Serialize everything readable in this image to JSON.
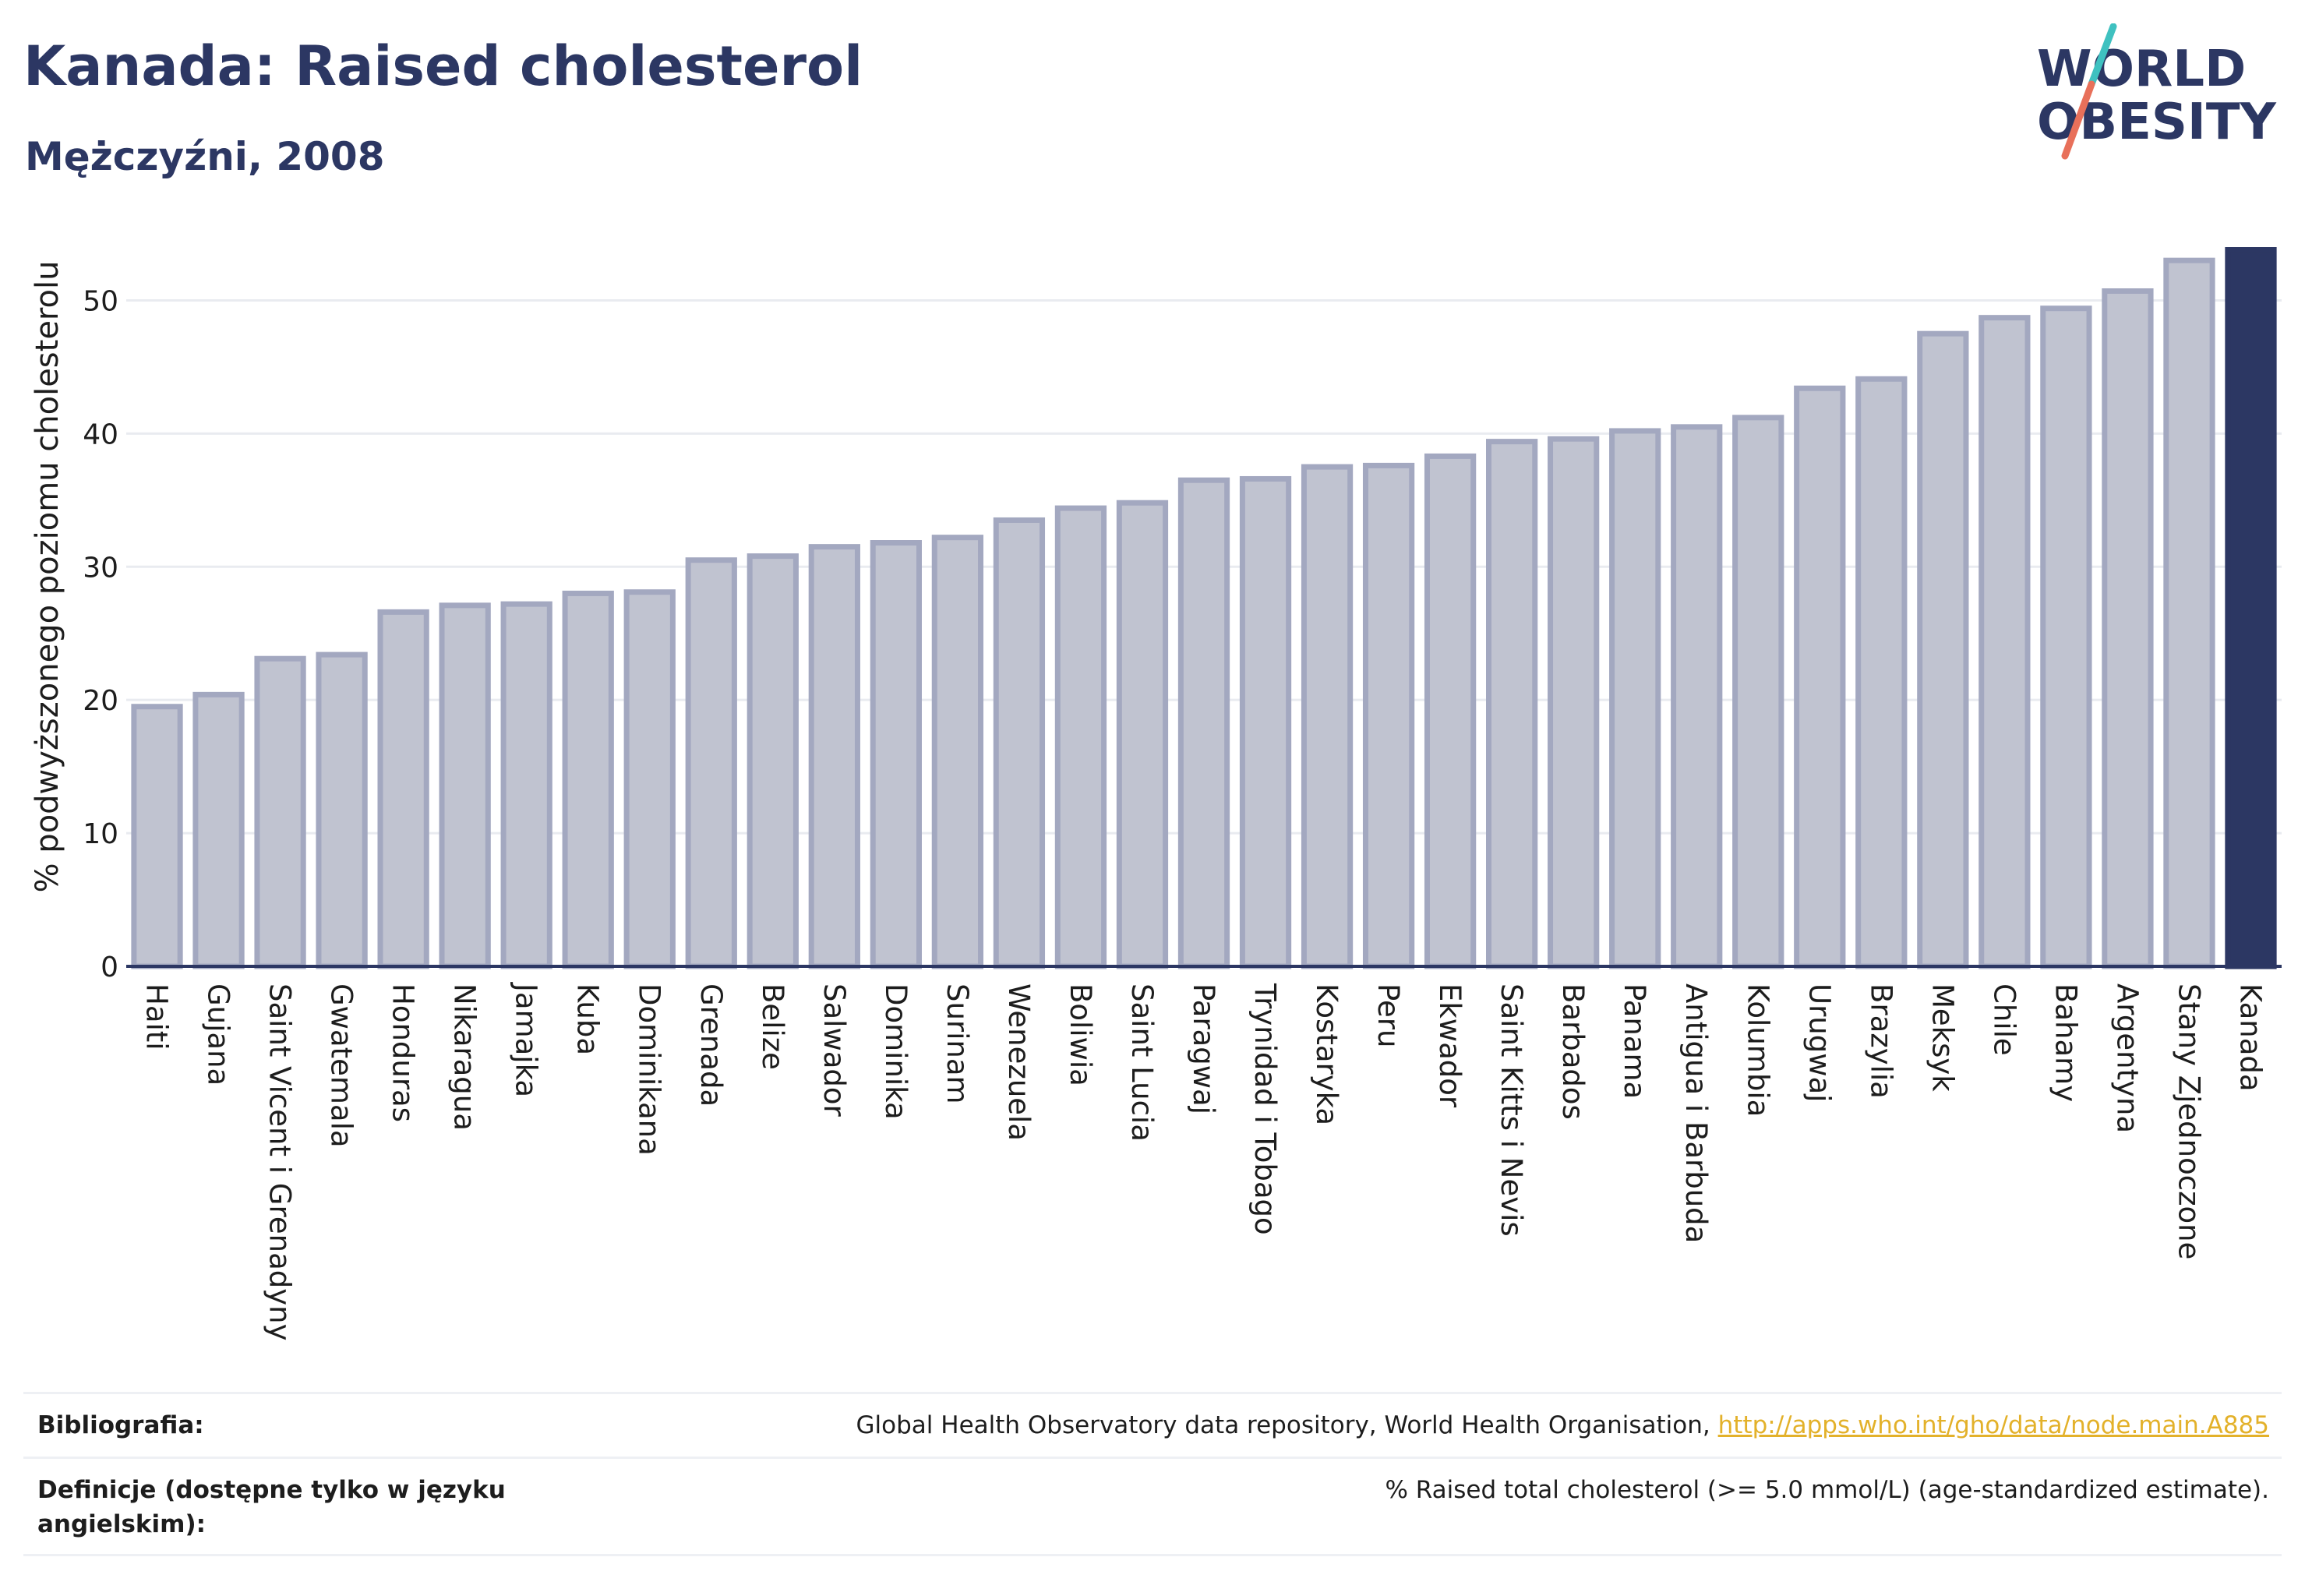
{
  "header": {
    "title": "Kanada: Raised cholesterol",
    "subtitle": "Mężczyźni, 2008"
  },
  "logo": {
    "text_line1": "WORLD",
    "text_line2": "OBESITY",
    "color_text": "#2c3763",
    "color_slash_top": "#3fc1c0",
    "color_slash_bottom": "#e8705a"
  },
  "colors": {
    "bar_fill": "#c0c3d0",
    "bar_stroke": "#a3a8c0",
    "highlight_fill": "#2c3763",
    "grid": "#e9ebf0",
    "axis": "#2c3763"
  },
  "chart_data": {
    "type": "bar",
    "title": "Kanada: Raised cholesterol",
    "subtitle": "Mężczyźni, 2008",
    "xlabel": "",
    "ylabel": "% podwyższonego poziomu cholesterolu",
    "ylim": [
      0,
      55
    ],
    "yticks": [
      0,
      10,
      20,
      30,
      40,
      50
    ],
    "grid": true,
    "highlight": "Kanada",
    "categories": [
      "Haiti",
      "Gujana",
      "Saint Vicent i Grenadyny",
      "Gwatemala",
      "Honduras",
      "Nikaragua",
      "Jamajka",
      "Kuba",
      "Dominikana",
      "Grenada",
      "Belize",
      "Salwador",
      "Dominika",
      "Surinam",
      "Wenezuela",
      "Boliwia",
      "Saint Lucia",
      "Paragwaj",
      "Trynidad i Tobago",
      "Kostaryka",
      "Peru",
      "Ekwador",
      "Saint Kitts i Nevis",
      "Barbados",
      "Panama",
      "Antigua i Barbuda",
      "Kolumbia",
      "Urugwaj",
      "Brazylia",
      "Meksyk",
      "Chile",
      "Bahamy",
      "Argentyna",
      "Stany Zjednoczone",
      "Kanada"
    ],
    "values": [
      19.5,
      20.4,
      23.1,
      23.4,
      26.6,
      27.1,
      27.2,
      28.0,
      28.1,
      30.5,
      30.8,
      31.5,
      31.8,
      32.2,
      33.5,
      34.4,
      34.8,
      36.5,
      36.6,
      37.5,
      37.6,
      38.3,
      39.4,
      39.6,
      40.2,
      40.5,
      41.2,
      43.4,
      44.1,
      47.5,
      48.7,
      49.4,
      50.7,
      53.0,
      53.8
    ]
  },
  "footer": {
    "bibliography_label": "Bibliografia:",
    "bibliography_text": "Global Health Observatory data repository, World Health Organisation, ",
    "bibliography_link": "http://apps.who.int/gho/data/node.main.A885",
    "definitions_label": "Definicje (dostępne tylko w języku angielskim):",
    "definitions_text": "% Raised total cholesterol (>= 5.0 mmol/L) (age-standardized estimate)."
  }
}
